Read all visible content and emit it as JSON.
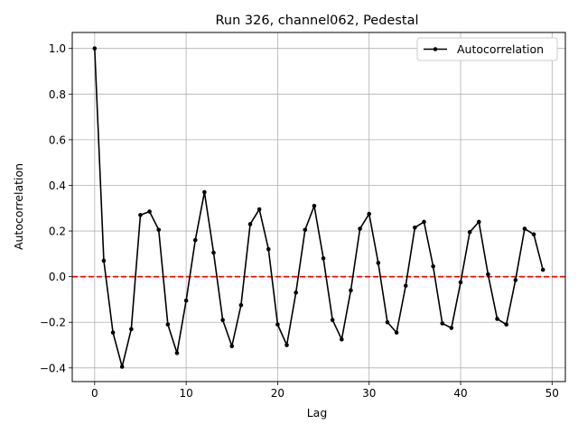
{
  "chart_data": {
    "type": "line",
    "title": "Run 326, channel062, Pedestal",
    "xlabel": "Lag",
    "ylabel": "Autocorrelation",
    "xlim": [
      -2.45,
      51.45
    ],
    "ylim": [
      -0.46,
      1.07
    ],
    "x_ticks": [
      0,
      10,
      20,
      30,
      40,
      50
    ],
    "x_tick_labels": [
      "0",
      "10",
      "20",
      "30",
      "40",
      "50"
    ],
    "y_ticks": [
      -0.4,
      -0.2,
      0.0,
      0.2,
      0.4,
      0.6,
      0.8,
      1.0
    ],
    "y_tick_labels": [
      "−0.4",
      "−0.2",
      "0.0",
      "0.2",
      "0.4",
      "0.6",
      "0.8",
      "1.0"
    ],
    "grid": true,
    "legend": {
      "position": "top-right",
      "entries": [
        "Autocorrelation"
      ]
    },
    "reference_line": {
      "y": 0,
      "style": "dashed",
      "color": "#ff0000"
    },
    "series": [
      {
        "name": "Autocorrelation",
        "color": "#000000",
        "marker": "dot",
        "x": [
          0,
          1,
          2,
          3,
          4,
          5,
          6,
          7,
          8,
          9,
          10,
          11,
          12,
          13,
          14,
          15,
          16,
          17,
          18,
          19,
          20,
          21,
          22,
          23,
          24,
          25,
          26,
          27,
          28,
          29,
          30,
          31,
          32,
          33,
          34,
          35,
          36,
          37,
          38,
          39,
          40,
          41,
          42,
          43,
          44,
          45,
          46,
          47,
          48,
          49
        ],
        "y": [
          1.0,
          0.07,
          -0.245,
          -0.395,
          -0.23,
          0.27,
          0.285,
          0.205,
          -0.21,
          -0.335,
          -0.105,
          0.16,
          0.37,
          0.105,
          -0.19,
          -0.305,
          -0.125,
          0.23,
          0.295,
          0.12,
          -0.21,
          -0.3,
          -0.07,
          0.205,
          0.31,
          0.08,
          -0.19,
          -0.275,
          -0.06,
          0.21,
          0.275,
          0.06,
          -0.2,
          -0.245,
          -0.04,
          0.215,
          0.24,
          0.045,
          -0.205,
          -0.225,
          -0.025,
          0.195,
          0.24,
          0.01,
          -0.185,
          -0.21,
          -0.015,
          0.21,
          0.185,
          0.03
        ]
      }
    ]
  }
}
